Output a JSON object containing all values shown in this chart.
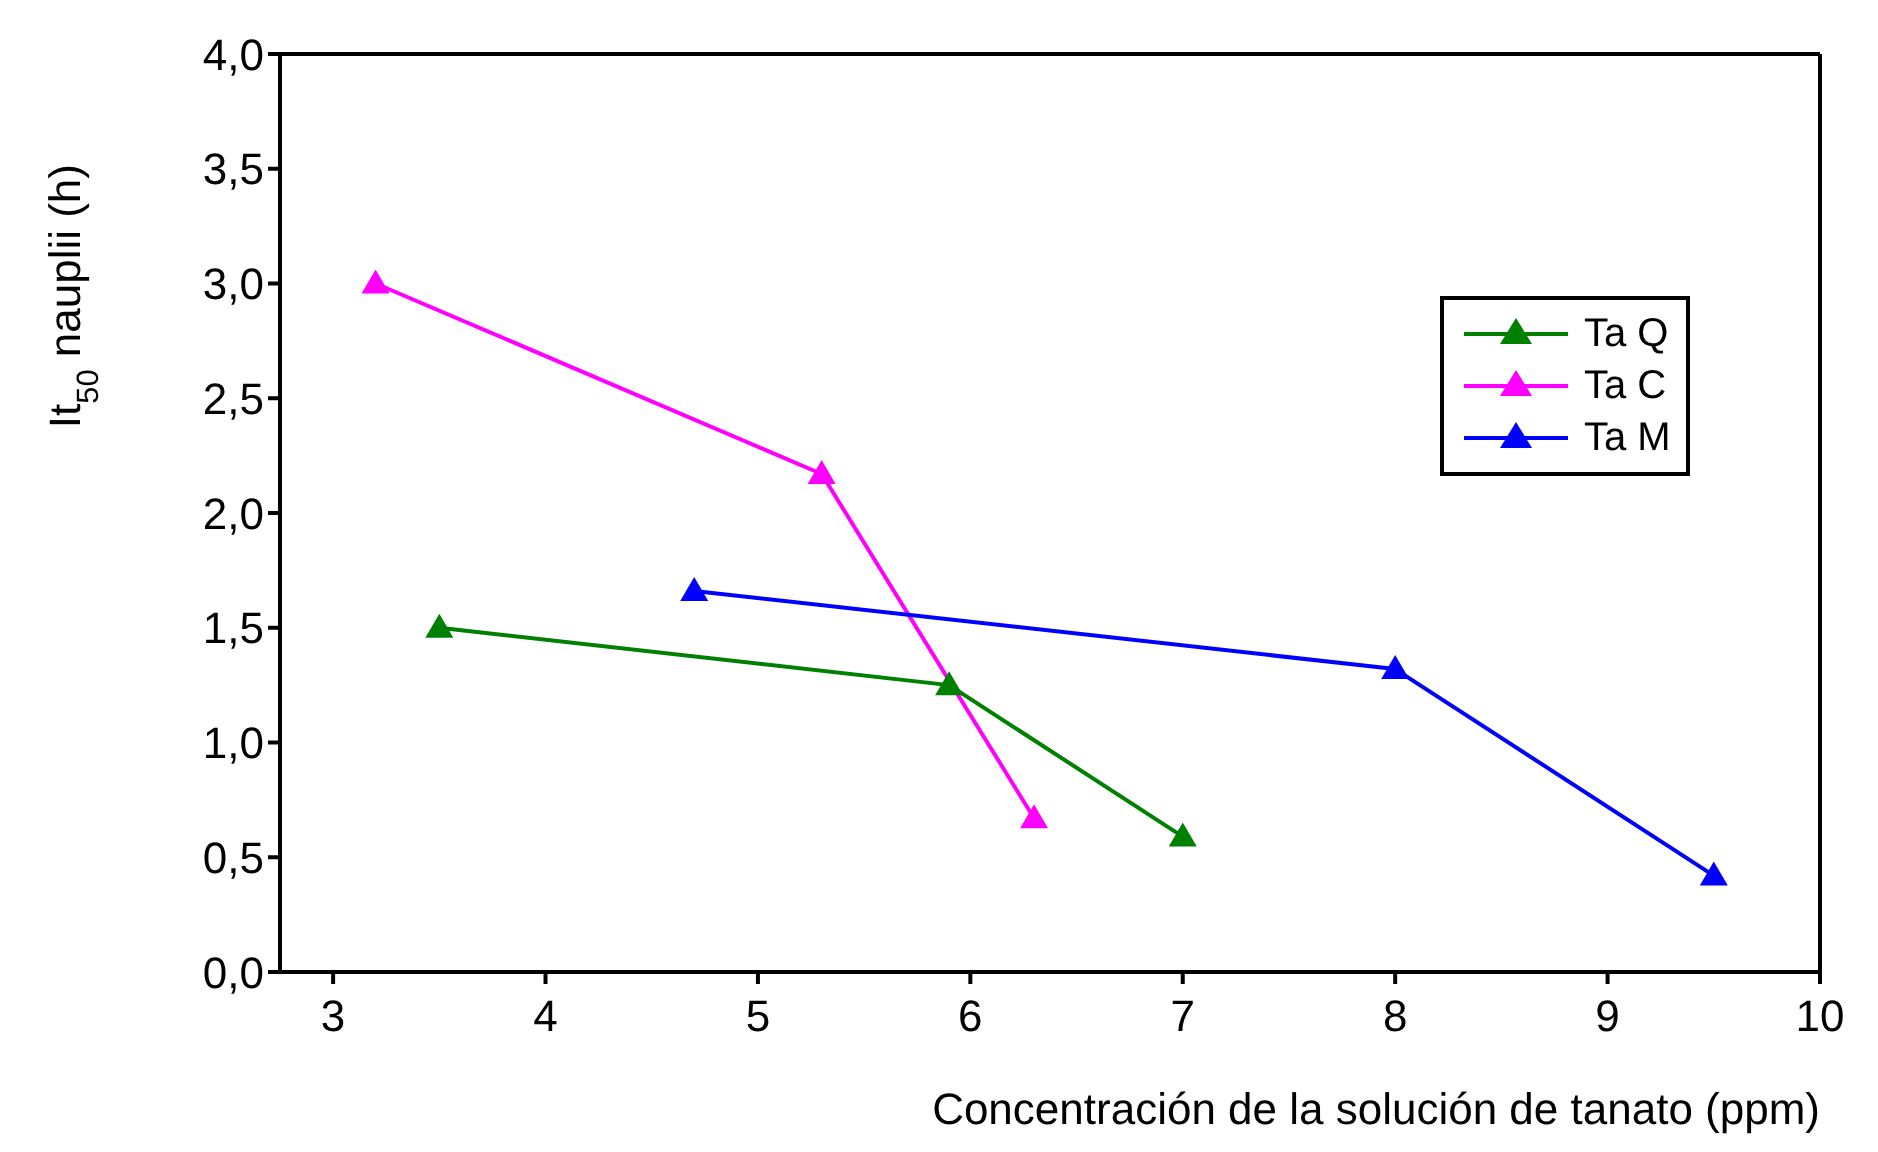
{
  "chart_data": {
    "type": "line",
    "xlabel": "Concentración de la solución de tanato  (ppm)",
    "ylabel": "It$_{50}$ nauplii (h)",
    "xlim": [
      2.75,
      10
    ],
    "xticks": [
      3,
      4,
      5,
      6,
      7,
      8,
      9,
      10
    ],
    "ylim": [
      0,
      4
    ],
    "yticks": [
      {
        "value": 0,
        "label": "0,0"
      },
      {
        "value": 0.5,
        "label": "0,5"
      },
      {
        "value": 1,
        "label": "1,0"
      },
      {
        "value": 1.5,
        "label": "1,5"
      },
      {
        "value": 2,
        "label": "2,0"
      },
      {
        "value": 2.5,
        "label": "2,5"
      },
      {
        "value": 3,
        "label": "3,0"
      },
      {
        "value": 3.5,
        "label": "3,5"
      },
      {
        "value": 4,
        "label": "4,0"
      }
    ],
    "marker": "triangle",
    "legend": "top right",
    "series": [
      {
        "name": "Ta Q",
        "color": "#008000",
        "x": [
          3.5,
          5.9,
          7
        ],
        "values": [
          1.5,
          1.25,
          0.59
        ]
      },
      {
        "name": "Ta C",
        "color": "#ff00ff",
        "x": [
          3.2,
          5.3,
          6.3
        ],
        "values": [
          3.0,
          2.17,
          0.67
        ]
      },
      {
        "name": "Ta M",
        "color": "#0000ff",
        "x": [
          4.7,
          8,
          9.5
        ],
        "values": [
          1.66,
          1.32,
          0.42
        ]
      }
    ]
  }
}
